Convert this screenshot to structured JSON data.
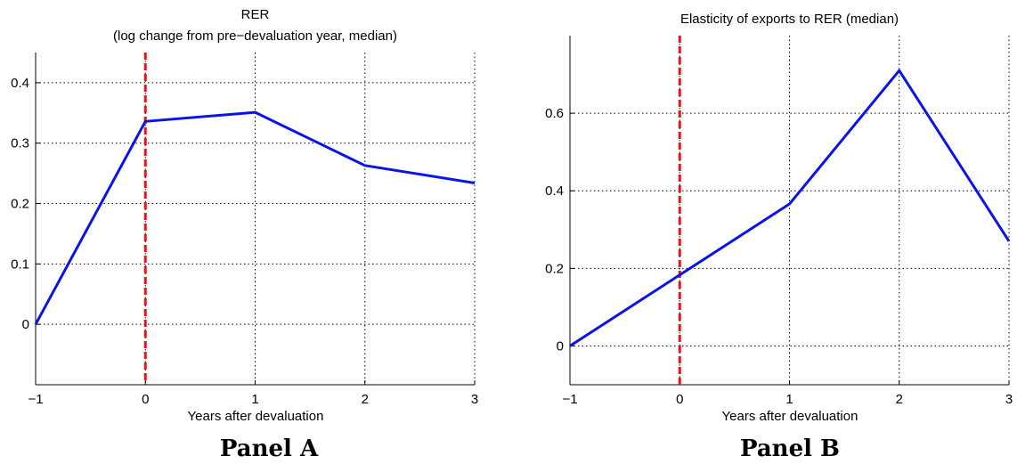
{
  "chart_data": [
    {
      "panel_label": "Panel A",
      "type": "line",
      "title": "RER",
      "subtitle": "(log change from pre−devaluation year, median)",
      "xlabel": "Years after devaluation",
      "ylabel": "",
      "xlim": [
        -1,
        3
      ],
      "ylim": [
        -0.1,
        0.45
      ],
      "xticks": [
        -1,
        0,
        1,
        2,
        3
      ],
      "yticks": [
        0,
        0.1,
        0.2,
        0.3,
        0.4
      ],
      "grid": true,
      "vline": {
        "x": 0,
        "style": "dashed",
        "color": "#e8141c"
      },
      "series": [
        {
          "x": [
            -1,
            0,
            1,
            2,
            3
          ],
          "values": [
            0.0,
            0.336,
            0.351,
            0.263,
            0.234
          ],
          "color": "#0a14e6"
        }
      ]
    },
    {
      "panel_label": "Panel B",
      "type": "line",
      "title": "Elasticity of exports to RER (median)",
      "subtitle": "",
      "xlabel": "Years after devaluation",
      "ylabel": "",
      "xlim": [
        -1,
        3
      ],
      "ylim": [
        -0.1,
        0.8
      ],
      "xticks": [
        -1,
        0,
        1,
        2,
        3
      ],
      "yticks": [
        0,
        0.2,
        0.4,
        0.6
      ],
      "grid": true,
      "vline": {
        "x": 0,
        "style": "dashed",
        "color": "#e8141c"
      },
      "series": [
        {
          "x": [
            -1,
            0,
            1,
            2,
            3
          ],
          "values": [
            0.0,
            0.183,
            0.366,
            0.71,
            0.27
          ],
          "color": "#0a14e6"
        }
      ]
    }
  ]
}
